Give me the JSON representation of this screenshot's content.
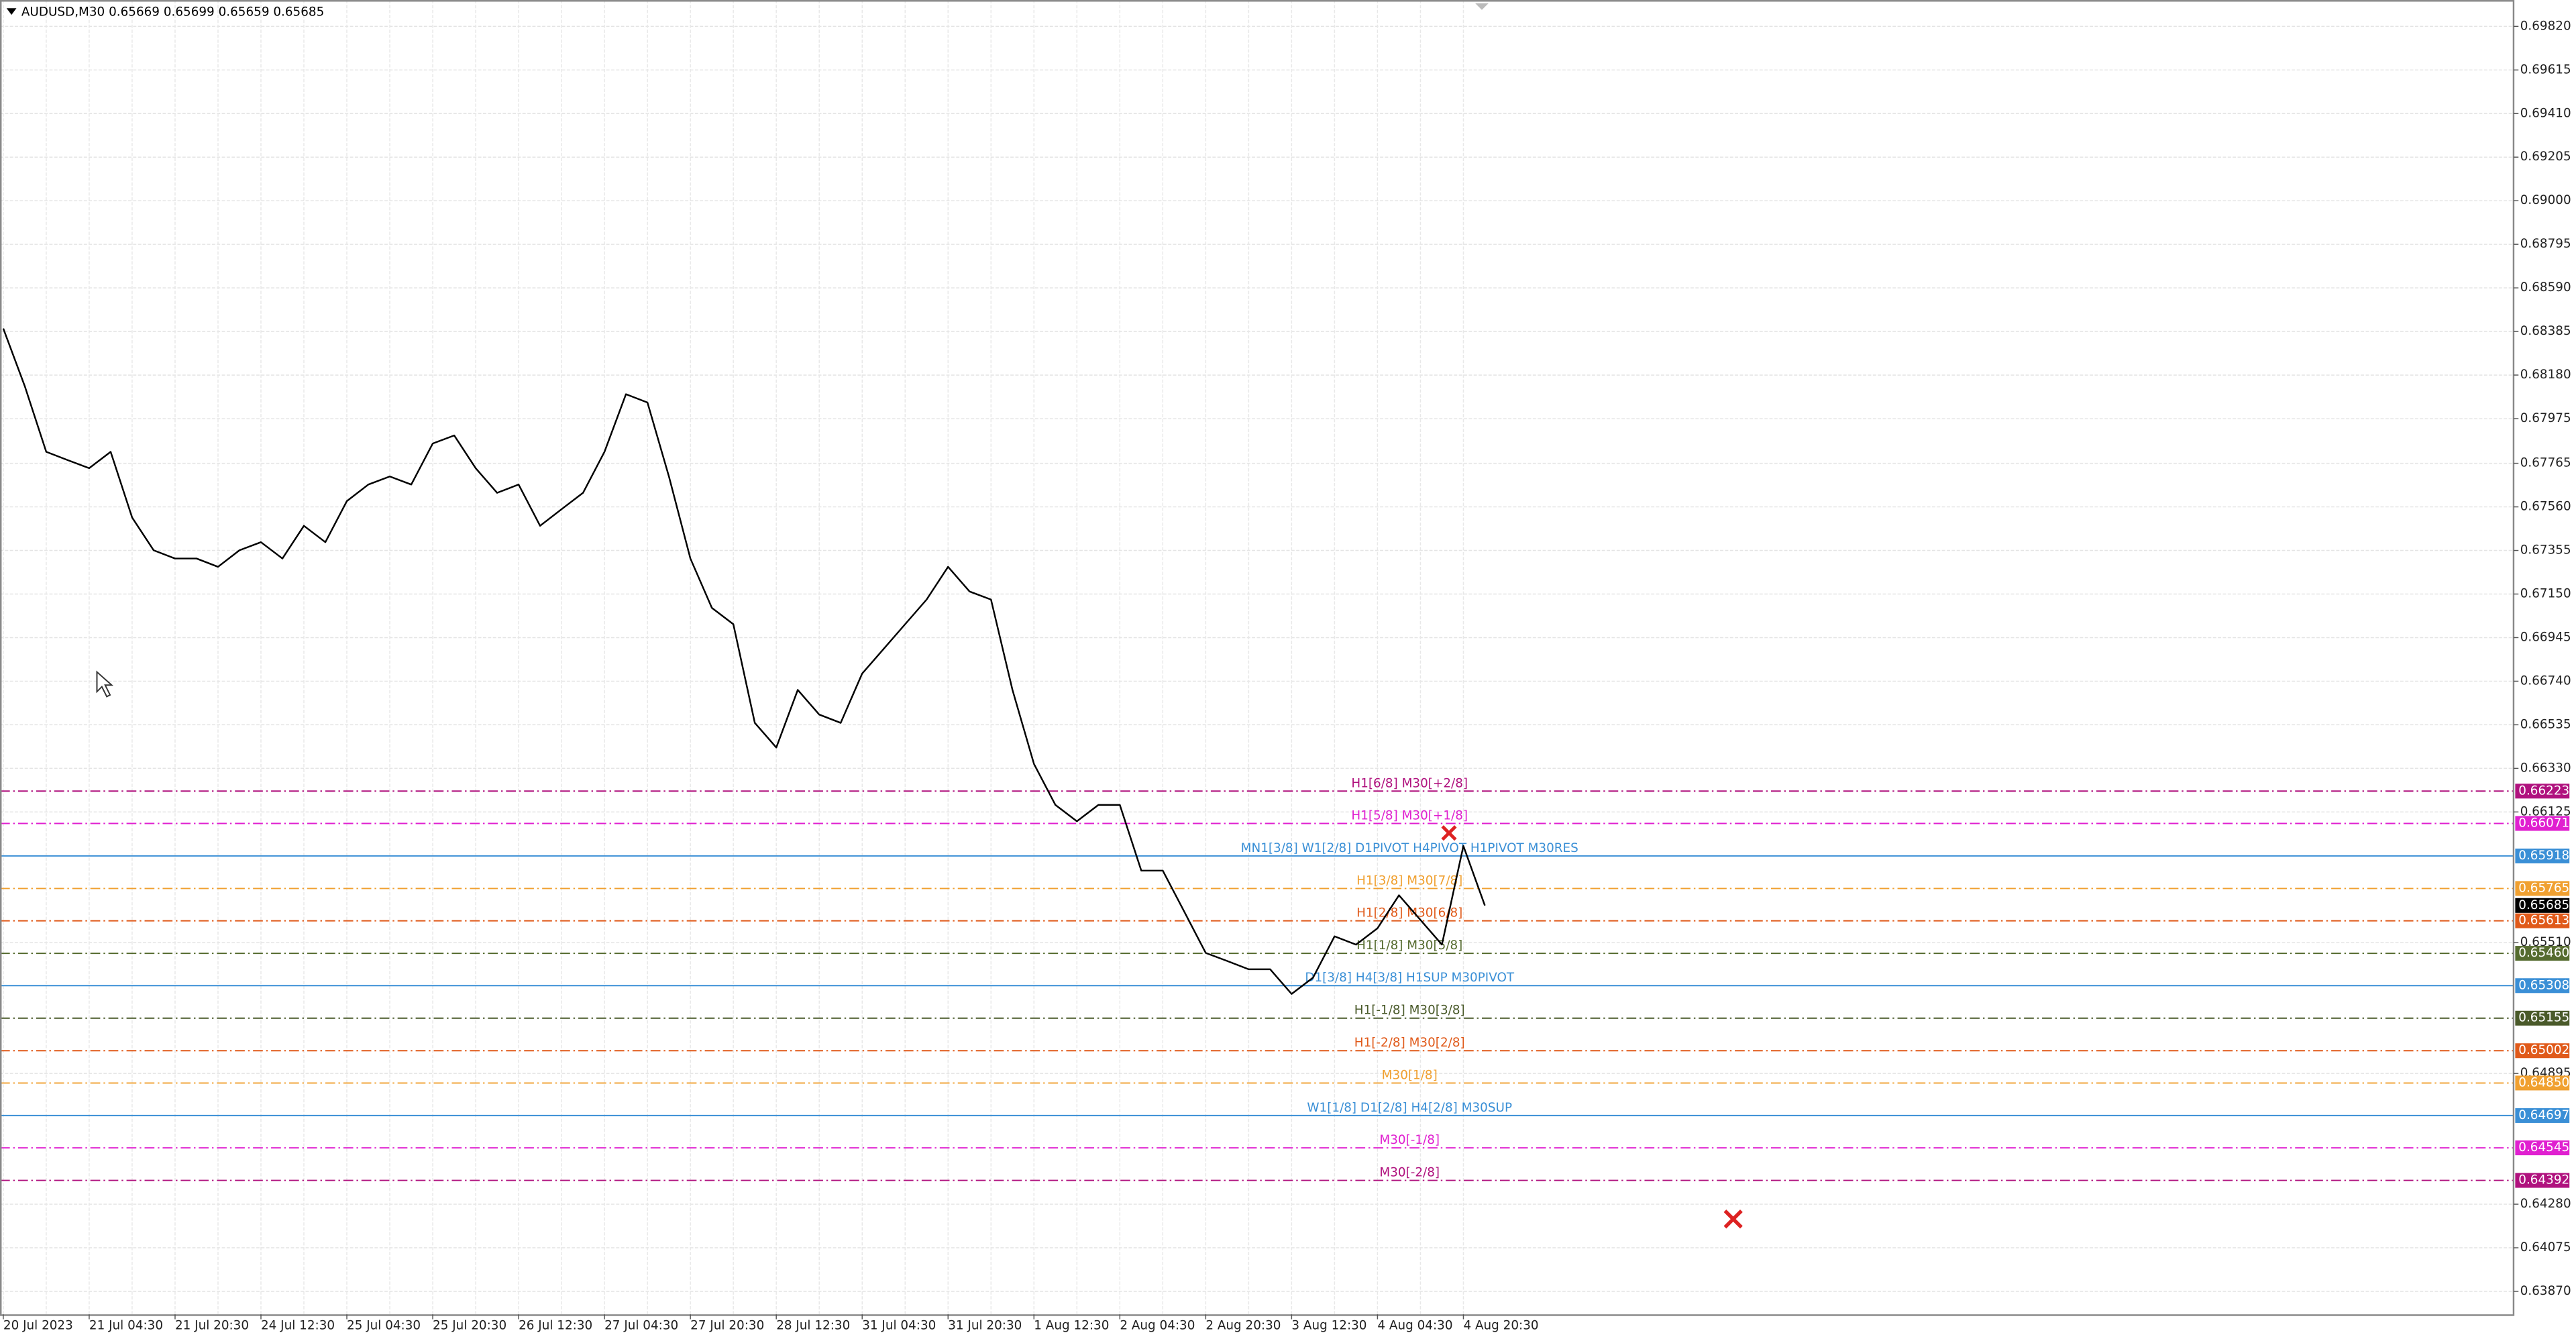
{
  "chart_data": {
    "type": "line",
    "title": "AUDUSD,M30  0.65669 0.65699 0.65659 0.65685",
    "color": "#000000",
    "grid": true,
    "categories": [
      "20 Jul 2023",
      null,
      null,
      null,
      "21 Jul 04:30",
      null,
      null,
      null,
      "21 Jul 20:30",
      null,
      null,
      null,
      "24 Jul 12:30",
      null,
      null,
      null,
      "25 Jul 04:30",
      null,
      null,
      null,
      "25 Jul 20:30",
      null,
      null,
      null,
      "26 Jul 12:30",
      null,
      null,
      null,
      "27 Jul 04:30",
      null,
      null,
      null,
      "27 Jul 20:30",
      null,
      null,
      null,
      "28 Jul 12:30",
      null,
      null,
      null,
      "31 Jul 04:30",
      null,
      null,
      null,
      "31 Jul 20:30",
      null,
      null,
      null,
      "1 Aug 12:30",
      null,
      null,
      null,
      "2 Aug 04:30",
      null,
      null,
      null,
      "2 Aug 20:30",
      null,
      null,
      null,
      "3 Aug 12:30",
      null,
      null,
      null,
      "4 Aug 04:30",
      null,
      null,
      null,
      "4 Aug 20:30",
      null
    ],
    "values": [
      0.68399,
      0.68128,
      0.67819,
      0.6778,
      0.67742,
      0.67819,
      0.6751,
      0.67356,
      0.67317,
      0.67317,
      0.67278,
      0.67356,
      0.67394,
      0.67317,
      0.67471,
      0.67394,
      0.67587,
      0.67665,
      0.67703,
      0.67665,
      0.67858,
      0.67896,
      0.67742,
      0.67626,
      0.67665,
      0.67471,
      0.67549,
      0.67626,
      0.67819,
      0.6809,
      0.68051,
      0.67703,
      0.67317,
      0.67085,
      0.67008,
      0.66544,
      0.66428,
      0.66699,
      0.66583,
      0.66544,
      0.66776,
      0.66892,
      0.67008,
      0.67124,
      0.67278,
      0.67162,
      0.67124,
      0.66699,
      0.66351,
      0.66158,
      0.66081,
      0.66158,
      0.66158,
      0.65849,
      0.65849,
      0.65656,
      0.65462,
      0.65424,
      0.65385,
      0.65385,
      0.65269,
      0.65346,
      0.6554,
      0.65501,
      0.65578,
      0.65733,
      0.65617,
      0.65501,
      0.65965,
      0.65685
    ],
    "ylim": [
      0.63762,
      0.69944
    ],
    "yticks": [
      {
        "value": 0.6982,
        "label": "0.69820"
      },
      0.69615,
      {
        "value": 0.6941,
        "label": "0.69410"
      },
      0.69205,
      {
        "value": 0.69,
        "label": "0.69000"
      },
      0.68795,
      {
        "value": 0.6859,
        "label": "0.68590"
      },
      0.68385,
      {
        "value": 0.6818,
        "label": "0.68180"
      },
      0.67975,
      0.67765,
      {
        "value": 0.6756,
        "label": "0.67560"
      },
      0.67355,
      {
        "value": 0.6715,
        "label": "0.67150"
      },
      0.66945,
      {
        "value": 0.6674,
        "label": "0.66740"
      },
      0.66535,
      {
        "value": 0.6633,
        "label": "0.66330"
      },
      0.66125,
      {
        "value": 0.6551,
        "label": "0.65510"
      },
      0.64895,
      {
        "value": 0.6428,
        "label": "0.64280"
      },
      0.64075,
      {
        "value": 0.6387,
        "label": "0.63870"
      }
    ],
    "current_price": 0.65685,
    "current_price_color": "#000000",
    "levels": [
      {
        "name": "H1[6/8] M30[+2/8]",
        "value": 0.66223,
        "color": "#b0127e",
        "style": "dashdot"
      },
      {
        "name": "H1[5/8] M30[+1/8]",
        "value": 0.66071,
        "color": "#e020d0",
        "style": "dashdot"
      },
      {
        "name": "MN1[3/8] W1[2/8] D1PIVOT H4PIVOT H1PIVOT M30RES",
        "value": 0.65918,
        "color": "#3a8fd6",
        "style": "solid"
      },
      {
        "name": "H1[3/8] M30[7/8]",
        "value": 0.65765,
        "color": "#f0a030",
        "style": "dashdot"
      },
      {
        "name": "H1[2/8] M30[6/8]",
        "value": 0.65613,
        "color": "#e05a1a",
        "style": "dashdot"
      },
      {
        "name": "H1[1/8] M30[5/8]",
        "value": 0.6546,
        "value_label": "0.65460",
        "color": "#556b2f",
        "style": "dashdot"
      },
      {
        "name": "D1[3/8] H4[3/8] H1SUP M30PIVOT",
        "value": 0.65308,
        "color": "#3a8fd6",
        "style": "solid"
      },
      {
        "name": "H1[-1/8] M30[3/8]",
        "value": 0.65155,
        "color": "#4a5a2a",
        "style": "dashdot"
      },
      {
        "name": "H1[-2/8] M30[2/8]",
        "value": 0.65002,
        "color": "#e05a1a",
        "style": "dashdot"
      },
      {
        "name": "M30[1/8]",
        "value": 0.6485,
        "value_label": "0.64850",
        "color": "#f0a030",
        "style": "dashdot"
      },
      {
        "name": "W1[1/8] D1[2/8] H4[2/8] M30SUP",
        "value": 0.64697,
        "color": "#3a8fd6",
        "style": "solid"
      },
      {
        "name": "M30[-1/8]",
        "value": 0.64545,
        "color": "#e020d0",
        "style": "dashdot"
      },
      {
        "name": "M30[-2/8]",
        "value": 0.64392,
        "color": "#b0127e",
        "style": "dashdot"
      }
    ]
  }
}
